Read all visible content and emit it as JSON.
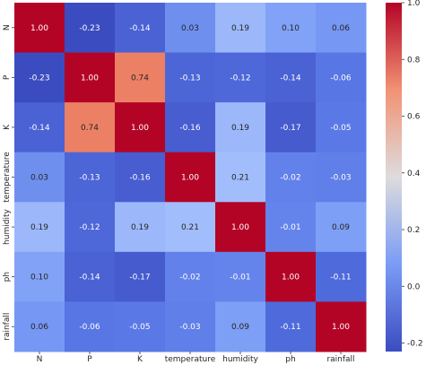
{
  "chart_data": {
    "type": "heatmap",
    "title": "",
    "xlabel": "",
    "ylabel": "",
    "x_categories": [
      "N",
      "P",
      "K",
      "temperature",
      "humidity",
      "ph",
      "rainfall"
    ],
    "y_categories": [
      "N",
      "P",
      "K",
      "temperature",
      "humidity",
      "ph",
      "rainfall"
    ],
    "values": [
      [
        1.0,
        -0.23,
        -0.14,
        0.03,
        0.19,
        0.1,
        0.06
      ],
      [
        -0.23,
        1.0,
        0.74,
        -0.13,
        -0.12,
        -0.14,
        -0.06
      ],
      [
        -0.14,
        0.74,
        1.0,
        -0.16,
        0.19,
        -0.17,
        -0.05
      ],
      [
        0.03,
        -0.13,
        -0.16,
        1.0,
        0.21,
        -0.02,
        -0.03
      ],
      [
        0.19,
        -0.12,
        0.19,
        0.21,
        1.0,
        -0.01,
        0.09
      ],
      [
        0.1,
        -0.14,
        -0.17,
        -0.02,
        -0.01,
        1.0,
        -0.11
      ],
      [
        0.06,
        -0.06,
        -0.05,
        -0.03,
        0.09,
        -0.11,
        1.0
      ]
    ],
    "value_format": "2 decimals",
    "colormap": "coolwarm",
    "vmin": -0.23,
    "vmax": 1.0,
    "colorbar_ticks": [
      -0.2,
      0.0,
      0.2,
      0.4,
      0.6,
      0.8,
      1.0
    ],
    "colorbar_tick_labels": [
      "-0.2",
      "0.0",
      "0.2",
      "0.4",
      "0.6",
      "0.8",
      "1.0"
    ],
    "grid": false,
    "legend": "colorbar-right"
  }
}
